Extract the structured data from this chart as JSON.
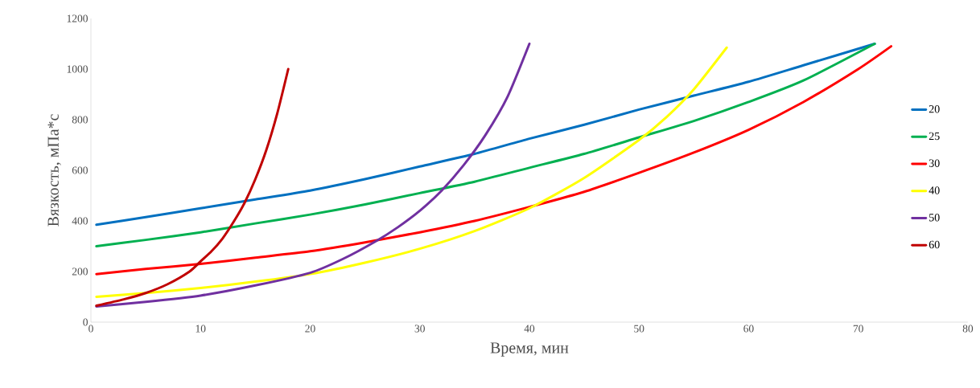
{
  "chart_data": {
    "type": "line",
    "xlabel": "Время, мин",
    "ylabel": "Вязкость, мПа*с",
    "xlim": [
      0,
      80
    ],
    "ylim": [
      0,
      1200
    ],
    "xticks": [
      0,
      10,
      20,
      30,
      40,
      50,
      60,
      70,
      80
    ],
    "yticks": [
      0,
      200,
      400,
      600,
      800,
      1000,
      1200
    ],
    "grid": false,
    "legend": "right",
    "marker": "none",
    "line_style": "solid",
    "series": [
      {
        "name": "20",
        "color": "#0070c0",
        "x": [
          0.5,
          5,
          10,
          15,
          20,
          25,
          30,
          35,
          40,
          45,
          50,
          55,
          60,
          65,
          71.5
        ],
        "values": [
          385,
          415,
          450,
          485,
          520,
          565,
          615,
          665,
          725,
          780,
          840,
          895,
          950,
          1015,
          1100
        ]
      },
      {
        "name": "25",
        "color": "#00b050",
        "x": [
          0.5,
          5,
          10,
          15,
          20,
          25,
          30,
          35,
          40,
          45,
          50,
          55,
          60,
          65,
          71.5
        ],
        "values": [
          300,
          325,
          355,
          390,
          425,
          465,
          510,
          555,
          610,
          665,
          730,
          795,
          870,
          955,
          1100
        ]
      },
      {
        "name": "30",
        "color": "#ff0000",
        "x": [
          0.5,
          5,
          10,
          15,
          20,
          25,
          30,
          35,
          40,
          45,
          50,
          55,
          60,
          65,
          70,
          73
        ],
        "values": [
          190,
          210,
          230,
          255,
          280,
          315,
          355,
          400,
          455,
          515,
          590,
          670,
          760,
          870,
          1000,
          1090
        ]
      },
      {
        "name": "40",
        "color": "#ffff00",
        "x": [
          0.5,
          5,
          10,
          15,
          20,
          25,
          30,
          35,
          40,
          45,
          50,
          52.5,
          55,
          58
        ],
        "values": [
          100,
          115,
          135,
          160,
          190,
          235,
          290,
          360,
          450,
          570,
          720,
          810,
          920,
          1085
        ]
      },
      {
        "name": "50",
        "color": "#7030a0",
        "x": [
          0.5,
          5,
          10,
          15,
          20,
          23,
          26,
          28,
          30,
          32,
          34,
          36,
          38,
          40
        ],
        "values": [
          62,
          80,
          105,
          145,
          195,
          250,
          320,
          375,
          440,
          520,
          620,
          740,
          890,
          1100
        ]
      },
      {
        "name": "60",
        "color": "#c00000",
        "x": [
          0.5,
          3,
          5,
          7,
          9,
          10,
          11,
          12,
          13,
          14,
          15,
          16,
          17,
          18
        ],
        "values": [
          65,
          90,
          115,
          150,
          200,
          240,
          280,
          330,
          395,
          470,
          565,
          680,
          825,
          1000
        ]
      }
    ]
  }
}
